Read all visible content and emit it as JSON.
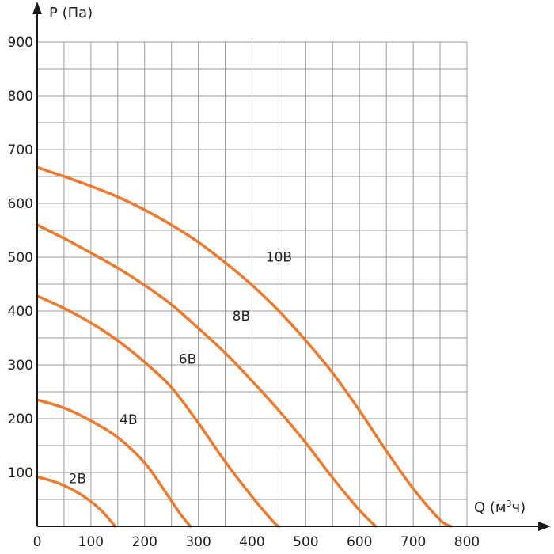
{
  "chart_data": {
    "type": "line",
    "xlabel": {
      "prefix": "Q (м",
      "sup": "3",
      "suffix": "ч)"
    },
    "ylabel": "P (Па)",
    "xlim": [
      0,
      800
    ],
    "ylim": [
      0,
      900
    ],
    "xticks": [
      "0",
      "100",
      "200",
      "300",
      "400",
      "500",
      "600",
      "700",
      "800"
    ],
    "yticks": [
      "100",
      "200",
      "300",
      "400",
      "500",
      "600",
      "700",
      "800",
      "900"
    ],
    "x_grid_step": 50,
    "y_grid_step": 50,
    "grid": true,
    "line_color": "#ec7a2f",
    "series": [
      {
        "name": "2В",
        "label_at": [
          75,
          80
        ],
        "points": [
          [
            0,
            92
          ],
          [
            40,
            80
          ],
          [
            80,
            60
          ],
          [
            110,
            38
          ],
          [
            130,
            18
          ],
          [
            145,
            0
          ]
        ]
      },
      {
        "name": "4В",
        "label_at": [
          170,
          190
        ],
        "points": [
          [
            0,
            235
          ],
          [
            50,
            220
          ],
          [
            100,
            196
          ],
          [
            150,
            165
          ],
          [
            200,
            118
          ],
          [
            240,
            62
          ],
          [
            265,
            25
          ],
          [
            285,
            0
          ]
        ]
      },
      {
        "name": "6В",
        "label_at": [
          280,
          302
        ],
        "points": [
          [
            0,
            428
          ],
          [
            50,
            405
          ],
          [
            100,
            378
          ],
          [
            150,
            345
          ],
          [
            200,
            305
          ],
          [
            250,
            258
          ],
          [
            300,
            192
          ],
          [
            350,
            120
          ],
          [
            400,
            55
          ],
          [
            440,
            8
          ],
          [
            450,
            0
          ]
        ]
      },
      {
        "name": "8В",
        "label_at": [
          380,
          382
        ],
        "points": [
          [
            0,
            560
          ],
          [
            50,
            535
          ],
          [
            100,
            508
          ],
          [
            150,
            480
          ],
          [
            200,
            448
          ],
          [
            250,
            412
          ],
          [
            300,
            368
          ],
          [
            350,
            322
          ],
          [
            400,
            270
          ],
          [
            450,
            215
          ],
          [
            500,
            155
          ],
          [
            550,
            90
          ],
          [
            600,
            30
          ],
          [
            630,
            0
          ]
        ]
      },
      {
        "name": "10В",
        "label_at": [
          450,
          492
        ],
        "points": [
          [
            0,
            667
          ],
          [
            50,
            650
          ],
          [
            100,
            632
          ],
          [
            150,
            612
          ],
          [
            200,
            588
          ],
          [
            250,
            560
          ],
          [
            300,
            528
          ],
          [
            350,
            490
          ],
          [
            400,
            448
          ],
          [
            450,
            400
          ],
          [
            500,
            345
          ],
          [
            550,
            285
          ],
          [
            600,
            215
          ],
          [
            650,
            140
          ],
          [
            700,
            70
          ],
          [
            750,
            12
          ],
          [
            770,
            0
          ]
        ]
      }
    ]
  }
}
